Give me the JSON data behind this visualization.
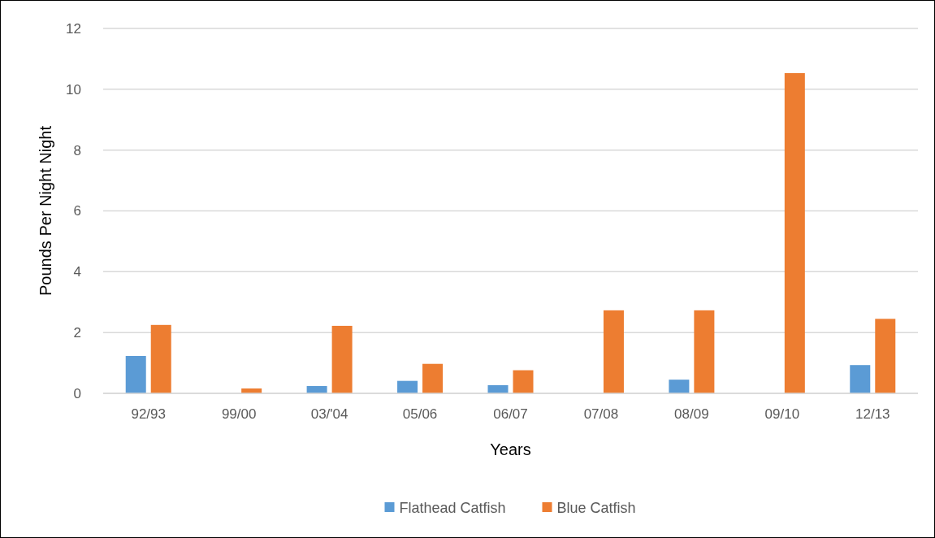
{
  "chart_data": {
    "type": "bar",
    "xlabel": "Years",
    "ylabel": "Pounds Per Night Night",
    "categories": [
      "92/93",
      "99/00",
      "03/'04",
      "05/06",
      "06/07",
      "07/08",
      "08/09",
      "09/10",
      "12/13"
    ],
    "series": [
      {
        "name": "Flathead Catfish",
        "color": "#5b9bd5",
        "values": [
          1.23,
          null,
          0.24,
          0.41,
          0.27,
          null,
          0.45,
          null,
          0.93
        ]
      },
      {
        "name": "Blue Catfish",
        "color": "#ed7d31",
        "values": [
          2.25,
          0.16,
          2.22,
          0.97,
          0.76,
          2.73,
          2.73,
          10.53,
          2.45
        ]
      }
    ],
    "ylim": [
      0,
      12
    ],
    "yticks": [
      0,
      2,
      4,
      6,
      8,
      10,
      12
    ],
    "grid": "y",
    "legend": "bottom"
  }
}
